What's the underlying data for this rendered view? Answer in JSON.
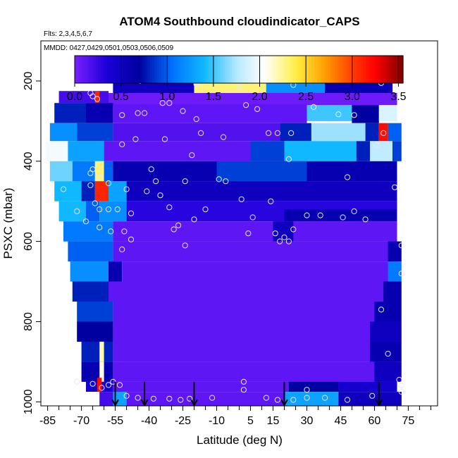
{
  "chart_data": {
    "type": "heatmap",
    "title": "ATOM4 Southbound cloudindicator_CAPS",
    "flights_label": "Flts: 2,3,4,5,6,7",
    "mmdd_label": "MMDD: 0427,0429,0501,0503,0506,0509",
    "xlabel": "Latitude (deg N)",
    "ylabel": "PSXC (mbar)",
    "xlim": [
      -88,
      88
    ],
    "ylim": [
      1010,
      100
    ],
    "x_ticks": [
      -85,
      -70,
      -55,
      -40,
      -25,
      -10,
      5,
      15,
      30,
      45,
      60,
      75
    ],
    "x_tick_labels": [
      "-85",
      "-70",
      "-55",
      "-40",
      "-25",
      "-10",
      "5",
      "15",
      "30",
      "45",
      "60",
      "75"
    ],
    "x_minor_ticks": [
      -80,
      -75,
      -65,
      -60,
      -50,
      -45,
      -35,
      -30,
      -20,
      -15,
      -5,
      0,
      10,
      20,
      25,
      35,
      40,
      50,
      55,
      65,
      70,
      80,
      85
    ],
    "y_ticks": [
      200,
      400,
      600,
      800,
      1000
    ],
    "y_tick_labels": [
      "200",
      "400",
      "600",
      "800",
      "1000"
    ],
    "colorbar": {
      "range": [
        0,
        3.55
      ],
      "ticks": [
        0.0,
        0.5,
        1.0,
        1.5,
        2.0,
        2.5,
        3.0,
        3.5
      ],
      "tick_labels": [
        "0.0",
        "0.5",
        "1.0",
        "1.5",
        "2.0",
        "2.5",
        "3.0",
        "3.5"
      ],
      "stops": [
        {
          "v": 0.0,
          "color": "#7b1fff"
        },
        {
          "v": 0.35,
          "color": "#1a00d8"
        },
        {
          "v": 0.7,
          "color": "#0000a0"
        },
        {
          "v": 1.05,
          "color": "#0070ff"
        },
        {
          "v": 1.4,
          "color": "#10b8ff"
        },
        {
          "v": 1.75,
          "color": "#b4e8ff"
        },
        {
          "v": 2.05,
          "color": "#ffffff"
        },
        {
          "v": 2.4,
          "color": "#ffee40"
        },
        {
          "v": 2.7,
          "color": "#ffa000"
        },
        {
          "v": 3.05,
          "color": "#ff3000"
        },
        {
          "v": 3.25,
          "color": "#ff0000"
        },
        {
          "v": 3.55,
          "color": "#7a0000"
        }
      ]
    },
    "background_value": 0.1,
    "cells": [
      {
        "x": [
          -56,
          68
        ],
        "p": [
          175,
          230
        ],
        "v": 0.5
      },
      {
        "x": [
          -20,
          12
        ],
        "p": [
          175,
          230
        ],
        "v": 2.3
      },
      {
        "x": [
          12,
          38
        ],
        "p": [
          175,
          230
        ],
        "v": 1.2
      },
      {
        "x": [
          38,
          66
        ],
        "p": [
          175,
          230
        ],
        "v": 0.6
      },
      {
        "x": [
          -80,
          -58
        ],
        "p": [
          225,
          255
        ],
        "v": 0.2
      },
      {
        "x": [
          -64,
          -62
        ],
        "p": [
          225,
          270
        ],
        "v": 3.1
      },
      {
        "x": [
          -58,
          70
        ],
        "p": [
          230,
          260
        ],
        "v": 0.05
      },
      {
        "x": [
          -82,
          -68
        ],
        "p": [
          255,
          305
        ],
        "v": 0.8
      },
      {
        "x": [
          -68,
          -56
        ],
        "p": [
          255,
          305
        ],
        "v": 0.6
      },
      {
        "x": [
          -56,
          30
        ],
        "p": [
          258,
          305
        ],
        "v": 0.1
      },
      {
        "x": [
          30,
          50
        ],
        "p": [
          260,
          300
        ],
        "v": 1.5
      },
      {
        "x": [
          50,
          62
        ],
        "p": [
          260,
          305
        ],
        "v": 0.7
      },
      {
        "x": [
          62,
          70
        ],
        "p": [
          260,
          300
        ],
        "v": 1.9
      },
      {
        "x": [
          -84,
          -72
        ],
        "p": [
          305,
          350
        ],
        "v": 1.2
      },
      {
        "x": [
          -72,
          -56
        ],
        "p": [
          305,
          350
        ],
        "v": 0.9
      },
      {
        "x": [
          -56,
          18
        ],
        "p": [
          305,
          350
        ],
        "v": 0.15
      },
      {
        "x": [
          18,
          32
        ],
        "p": [
          305,
          350
        ],
        "v": 0.8
      },
      {
        "x": [
          32,
          56
        ],
        "p": [
          305,
          350
        ],
        "v": 1.7
      },
      {
        "x": [
          56,
          62
        ],
        "p": [
          305,
          350
        ],
        "v": 0.8
      },
      {
        "x": [
          62,
          66
        ],
        "p": [
          305,
          350
        ],
        "v": 3.2
      },
      {
        "x": [
          66,
          72
        ],
        "p": [
          305,
          350
        ],
        "v": 1.0
      },
      {
        "x": [
          -86,
          -76
        ],
        "p": [
          350,
          400
        ],
        "v": 2.0
      },
      {
        "x": [
          -76,
          -60
        ],
        "p": [
          350,
          400
        ],
        "v": 1.3
      },
      {
        "x": [
          -60,
          5
        ],
        "p": [
          350,
          400
        ],
        "v": 0.1
      },
      {
        "x": [
          5,
          20
        ],
        "p": [
          350,
          400
        ],
        "v": 0.9
      },
      {
        "x": [
          20,
          52
        ],
        "p": [
          350,
          400
        ],
        "v": 1.4
      },
      {
        "x": [
          52,
          58
        ],
        "p": [
          350,
          400
        ],
        "v": 0.8
      },
      {
        "x": [
          58,
          68
        ],
        "p": [
          350,
          400
        ],
        "v": 1.8
      },
      {
        "x": [
          68,
          72
        ],
        "p": [
          350,
          400
        ],
        "v": 0.9
      },
      {
        "x": [
          -84,
          -74
        ],
        "p": [
          400,
          450
        ],
        "v": 1.6
      },
      {
        "x": [
          -74,
          -64
        ],
        "p": [
          400,
          450
        ],
        "v": 1.1
      },
      {
        "x": [
          -64,
          -60
        ],
        "p": [
          400,
          450
        ],
        "v": 2.3
      },
      {
        "x": [
          -60,
          -56
        ],
        "p": [
          400,
          450
        ],
        "v": 1.0
      },
      {
        "x": [
          -56,
          70
        ],
        "p": [
          400,
          450
        ],
        "v": 0.6
      },
      {
        "x": [
          -10,
          30
        ],
        "p": [
          400,
          450
        ],
        "v": 0.9
      },
      {
        "x": [
          -82,
          -70
        ],
        "p": [
          450,
          500
        ],
        "v": 1.4
      },
      {
        "x": [
          -70,
          -64
        ],
        "p": [
          450,
          500
        ],
        "v": 0.8
      },
      {
        "x": [
          -64,
          -58
        ],
        "p": [
          450,
          500
        ],
        "v": 3.1
      },
      {
        "x": [
          -58,
          -50
        ],
        "p": [
          450,
          500
        ],
        "v": 1.3
      },
      {
        "x": [
          -50,
          70
        ],
        "p": [
          450,
          500
        ],
        "v": 0.5
      },
      {
        "x": [
          -80,
          -68
        ],
        "p": [
          500,
          550
        ],
        "v": 1.4
      },
      {
        "x": [
          -68,
          -62
        ],
        "p": [
          500,
          550
        ],
        "v": 1.0
      },
      {
        "x": [
          -62,
          -50
        ],
        "p": [
          500,
          550
        ],
        "v": 1.2
      },
      {
        "x": [
          -50,
          70
        ],
        "p": [
          500,
          550
        ],
        "v": 0.3
      },
      {
        "x": [
          20,
          70
        ],
        "p": [
          520,
          550
        ],
        "v": 0.6
      },
      {
        "x": [
          -78,
          -56
        ],
        "p": [
          550,
          600
        ],
        "v": 1.1
      },
      {
        "x": [
          -56,
          70
        ],
        "p": [
          550,
          600
        ],
        "v": 0.1
      },
      {
        "x": [
          15,
          24
        ],
        "p": [
          550,
          600
        ],
        "v": 0.5
      },
      {
        "x": [
          -76,
          -56
        ],
        "p": [
          600,
          650
        ],
        "v": 1.0
      },
      {
        "x": [
          -56,
          70
        ],
        "p": [
          600,
          650
        ],
        "v": 0.1
      },
      {
        "x": [
          66,
          72
        ],
        "p": [
          600,
          650
        ],
        "v": 0.6
      },
      {
        "x": [
          -75,
          -58
        ],
        "p": [
          650,
          700
        ],
        "v": 1.2
      },
      {
        "x": [
          -58,
          -52
        ],
        "p": [
          650,
          700
        ],
        "v": 0.6
      },
      {
        "x": [
          -52,
          70
        ],
        "p": [
          650,
          700
        ],
        "v": 0.1
      },
      {
        "x": [
          66,
          72
        ],
        "p": [
          650,
          700
        ],
        "v": 1.1
      },
      {
        "x": [
          -74,
          -58
        ],
        "p": [
          700,
          750
        ],
        "v": 0.8
      },
      {
        "x": [
          -58,
          70
        ],
        "p": [
          700,
          750
        ],
        "v": 0.1
      },
      {
        "x": [
          64,
          72
        ],
        "p": [
          700,
          750
        ],
        "v": 0.6
      },
      {
        "x": [
          -72,
          -56
        ],
        "p": [
          750,
          800
        ],
        "v": 0.9
      },
      {
        "x": [
          -56,
          70
        ],
        "p": [
          750,
          800
        ],
        "v": 0.1
      },
      {
        "x": [
          60,
          72
        ],
        "p": [
          750,
          800
        ],
        "v": 0.6
      },
      {
        "x": [
          -72,
          -56
        ],
        "p": [
          800,
          850
        ],
        "v": 0.7
      },
      {
        "x": [
          -56,
          70
        ],
        "p": [
          800,
          850
        ],
        "v": 0.1
      },
      {
        "x": [
          58,
          72
        ],
        "p": [
          800,
          850
        ],
        "v": 0.5
      },
      {
        "x": [
          -70,
          -56
        ],
        "p": [
          850,
          900
        ],
        "v": 0.8
      },
      {
        "x": [
          -62,
          -60
        ],
        "p": [
          850,
          900
        ],
        "v": 2.2
      },
      {
        "x": [
          -56,
          70
        ],
        "p": [
          850,
          900
        ],
        "v": 0.1
      },
      {
        "x": [
          58,
          72
        ],
        "p": [
          850,
          900
        ],
        "v": 0.6
      },
      {
        "x": [
          -70,
          -56
        ],
        "p": [
          900,
          950
        ],
        "v": 0.6
      },
      {
        "x": [
          -62,
          -60
        ],
        "p": [
          900,
          950
        ],
        "v": 2.1
      },
      {
        "x": [
          -56,
          70
        ],
        "p": [
          900,
          950
        ],
        "v": 0.1
      },
      {
        "x": [
          60,
          72
        ],
        "p": [
          900,
          950
        ],
        "v": 0.5
      },
      {
        "x": [
          -68,
          -56
        ],
        "p": [
          950,
          975
        ],
        "v": 0.4
      },
      {
        "x": [
          -63,
          -61
        ],
        "p": [
          940,
          975
        ],
        "v": 3.2
      },
      {
        "x": [
          -56,
          70
        ],
        "p": [
          950,
          975
        ],
        "v": 0.1
      },
      {
        "x": [
          22,
          44
        ],
        "p": [
          950,
          975
        ],
        "v": 0.7
      },
      {
        "x": [
          44,
          70
        ],
        "p": [
          950,
          975
        ],
        "v": 0.4
      },
      {
        "x": [
          -62,
          -52
        ],
        "p": [
          975,
          1010
        ],
        "v": 0.2
      },
      {
        "x": [
          -56,
          -50
        ],
        "p": [
          975,
          1010
        ],
        "v": 1.3
      },
      {
        "x": [
          -50,
          20
        ],
        "p": [
          975,
          1010
        ],
        "v": 0.1
      },
      {
        "x": [
          20,
          44
        ],
        "p": [
          975,
          1010
        ],
        "v": 1.3
      },
      {
        "x": [
          44,
          72
        ],
        "p": [
          975,
          1010
        ],
        "v": 0.5
      }
    ],
    "points": [
      [
        -66,
        230
      ],
      [
        -65,
        238
      ],
      [
        -63,
        245
      ],
      [
        -58,
        200
      ],
      [
        -48,
        195
      ],
      [
        -44,
        200
      ],
      [
        -19,
        208
      ],
      [
        -18,
        208
      ],
      [
        0,
        215
      ],
      [
        24,
        210
      ],
      [
        63,
        205
      ],
      [
        67,
        198
      ],
      [
        -52,
        285
      ],
      [
        -45,
        280
      ],
      [
        -42,
        280
      ],
      [
        -34,
        255
      ],
      [
        -31,
        255
      ],
      [
        -25,
        275
      ],
      [
        -19,
        295
      ],
      [
        3,
        260
      ],
      [
        8,
        270
      ],
      [
        33,
        265
      ],
      [
        44,
        283
      ],
      [
        51,
        285
      ],
      [
        -52,
        358
      ],
      [
        -46,
        345
      ],
      [
        -33,
        345
      ],
      [
        -21,
        385
      ],
      [
        -17,
        330
      ],
      [
        -7,
        340
      ],
      [
        13,
        330
      ],
      [
        17,
        330
      ],
      [
        23,
        330
      ],
      [
        64,
        330
      ],
      [
        61,
        360
      ],
      [
        -66,
        460
      ],
      [
        -66,
        430
      ],
      [
        -65,
        420
      ],
      [
        -62,
        440
      ],
      [
        -58,
        455
      ],
      [
        -50,
        470
      ],
      [
        -39,
        420
      ],
      [
        -37,
        450
      ],
      [
        -24,
        450
      ],
      [
        -9,
        445
      ],
      [
        -6,
        450
      ],
      [
        -15,
        520
      ],
      [
        -27,
        560
      ],
      [
        -20,
        545
      ],
      [
        22,
        395
      ],
      [
        48,
        440
      ],
      [
        -78,
        470
      ],
      [
        -72,
        525
      ],
      [
        -62,
        520
      ],
      [
        -64,
        505
      ],
      [
        -58,
        520
      ],
      [
        -54,
        520
      ],
      [
        -48,
        530
      ],
      [
        -41,
        475
      ],
      [
        -35,
        485
      ],
      [
        -31,
        515
      ],
      [
        -29,
        570
      ],
      [
        1,
        495
      ],
      [
        6,
        540
      ],
      [
        14,
        500
      ],
      [
        20,
        590
      ],
      [
        22,
        600
      ],
      [
        30,
        535
      ],
      [
        36,
        535
      ],
      [
        46,
        540
      ],
      [
        51,
        525
      ],
      [
        56,
        545
      ],
      [
        69,
        465
      ],
      [
        -68,
        550
      ],
      [
        -62,
        565
      ],
      [
        -57,
        575
      ],
      [
        -51,
        575
      ],
      [
        -48,
        595
      ],
      [
        -52,
        620
      ],
      [
        -24,
        610
      ],
      [
        4,
        580
      ],
      [
        16,
        580
      ],
      [
        24,
        570
      ],
      [
        18,
        600
      ],
      [
        72,
        610
      ],
      [
        72,
        680
      ],
      [
        63,
        770
      ],
      [
        66,
        880
      ],
      [
        -72,
        950
      ],
      [
        -65,
        955
      ],
      [
        -61,
        965
      ],
      [
        -58,
        958
      ],
      [
        -56,
        950
      ],
      [
        -53,
        958
      ],
      [
        -50,
        985
      ],
      [
        -45,
        990
      ],
      [
        -38,
        992
      ],
      [
        -31,
        992
      ],
      [
        -26,
        995
      ],
      [
        -22,
        992
      ],
      [
        -12,
        990
      ],
      [
        2,
        950
      ],
      [
        2,
        970
      ],
      [
        12,
        990
      ],
      [
        17,
        995
      ],
      [
        24,
        995
      ],
      [
        30,
        970
      ],
      [
        30,
        990
      ],
      [
        38,
        990
      ],
      [
        48,
        995
      ],
      [
        59,
        985
      ],
      [
        71,
        945
      ],
      [
        72,
        960
      ],
      [
        72,
        975
      ]
    ],
    "arrows_x": [
      -55,
      -42,
      -20,
      20,
      62
    ]
  }
}
